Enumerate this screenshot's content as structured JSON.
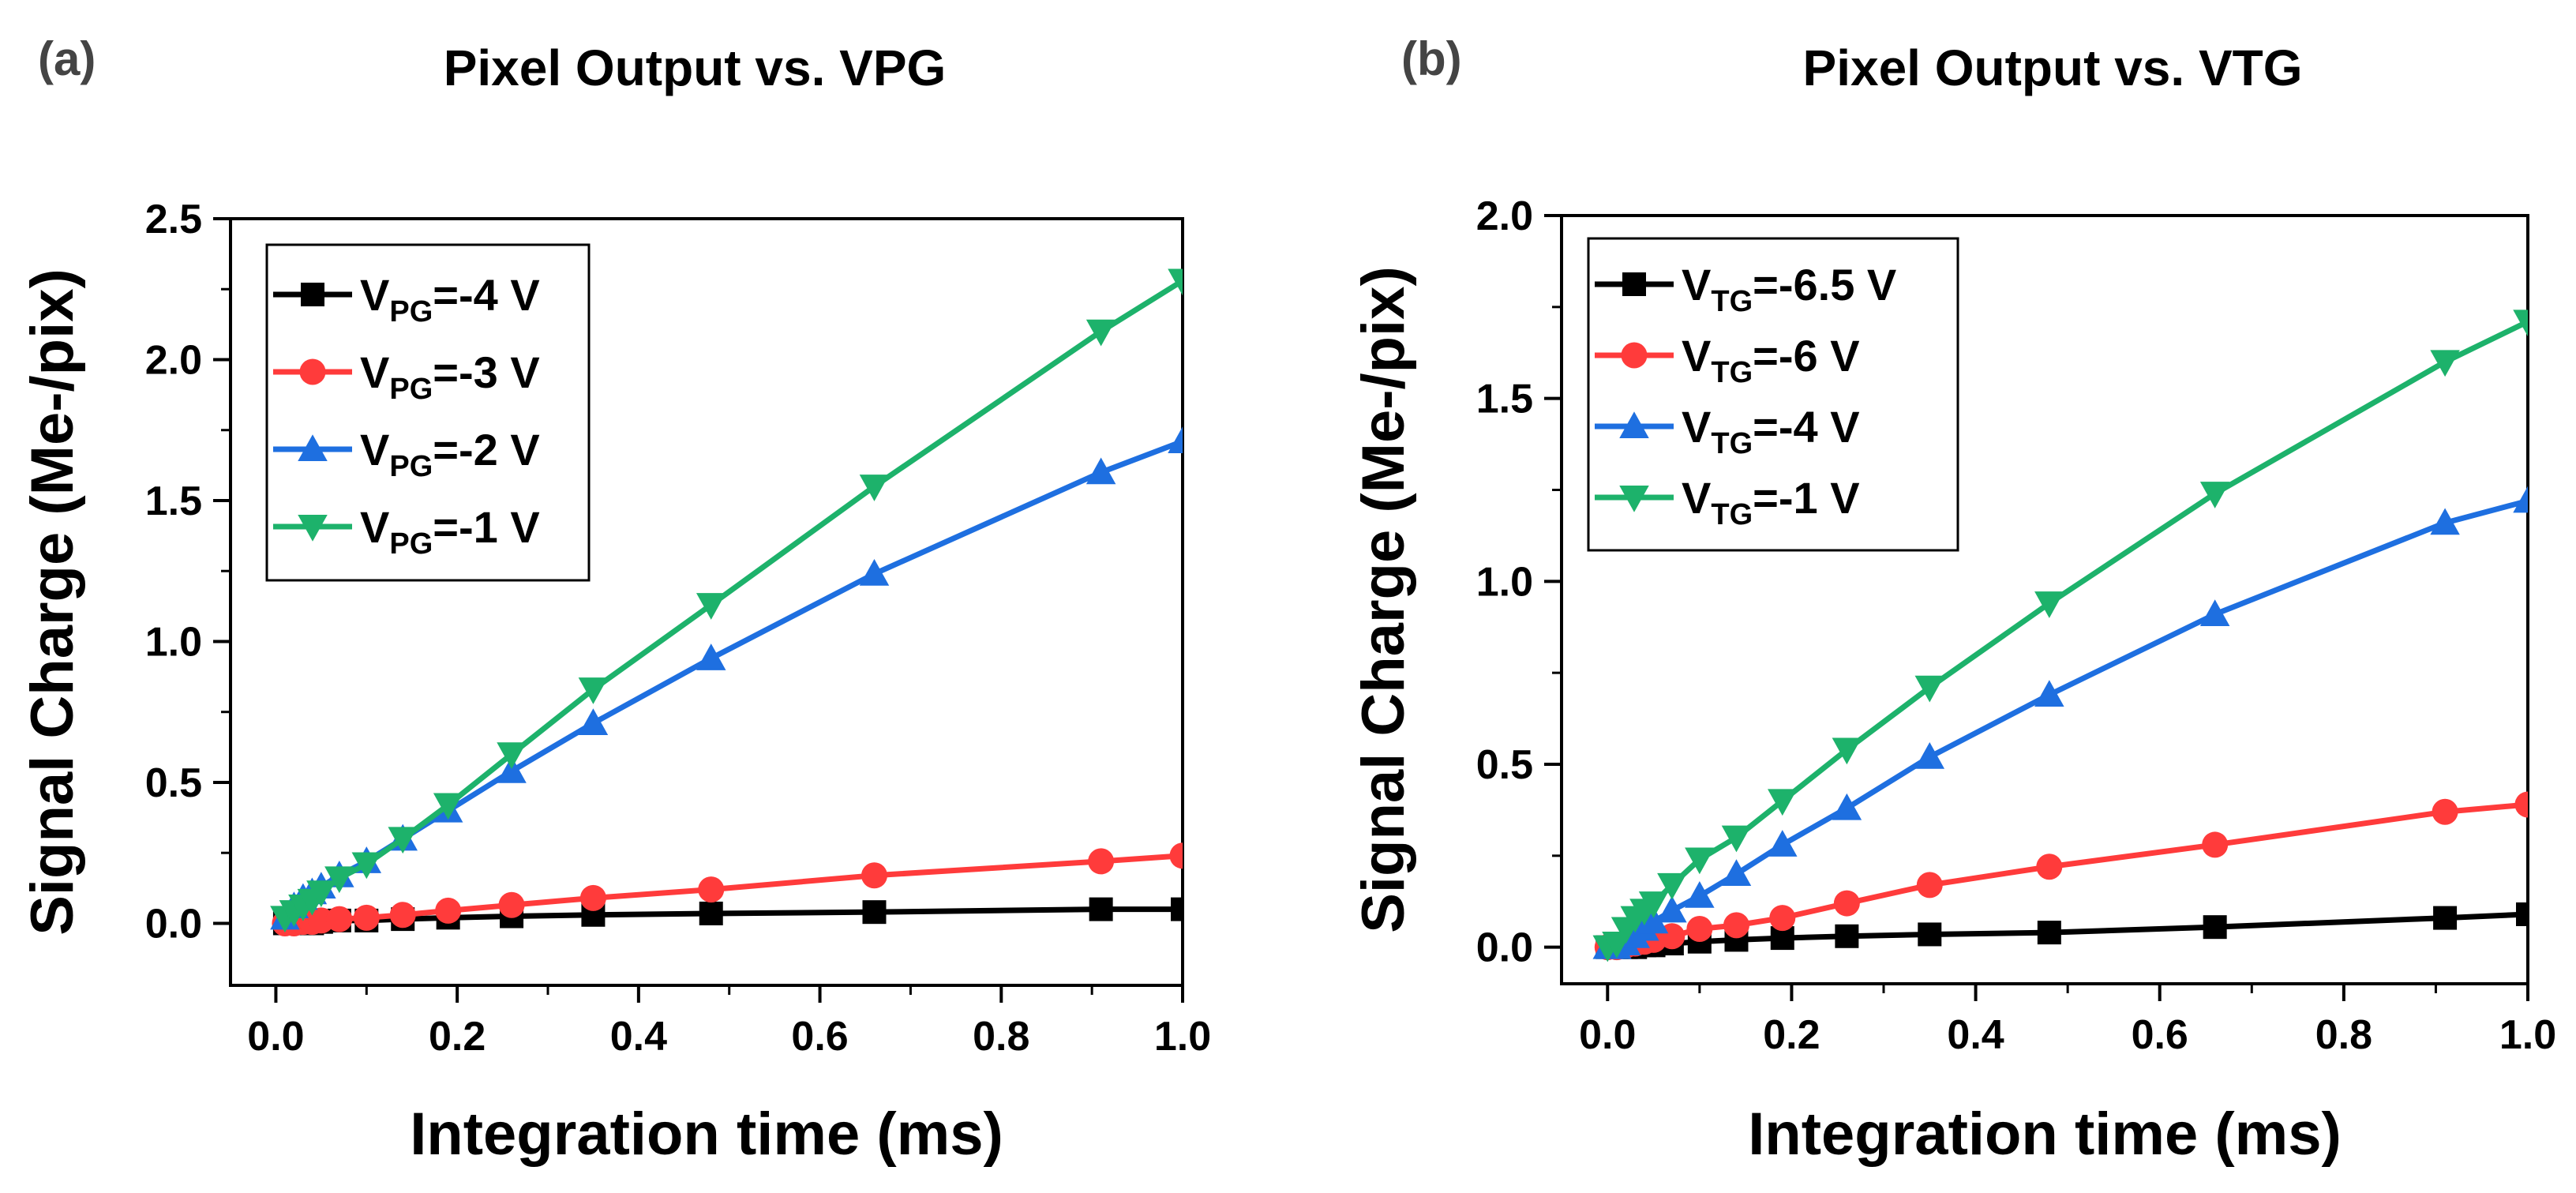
{
  "chart_data": [
    {
      "type": "line",
      "panel_label": "(a)",
      "title": "Pixel Output vs. VPG",
      "xlabel": "Integration time (ms)",
      "ylabel": "Signal Charge (Me-/pix)",
      "xlim": [
        -0.05,
        1.0
      ],
      "ylim": [
        -0.22,
        2.5
      ],
      "xticks": [
        "0.0",
        "0.2",
        "0.4",
        "0.6",
        "0.8",
        "1.0"
      ],
      "yticks": [
        "0.0",
        "0.5",
        "1.0",
        "1.5",
        "2.0",
        "2.5"
      ],
      "legend_position": "top-left",
      "x": [
        0.01,
        0.02,
        0.03,
        0.04,
        0.05,
        0.07,
        0.1,
        0.14,
        0.19,
        0.26,
        0.35,
        0.48,
        0.66,
        0.91,
        1.0
      ],
      "series": [
        {
          "label_main": "V",
          "label_sub": "PG",
          "label_rest": "=-4 V",
          "color": "#000000",
          "marker": "square",
          "values": [
            0.0,
            0.0,
            0.0,
            0.0,
            0.005,
            0.01,
            0.01,
            0.015,
            0.02,
            0.025,
            0.03,
            0.035,
            0.04,
            0.05,
            0.05
          ]
        },
        {
          "label_main": "V",
          "label_sub": "PG",
          "label_rest": "=-3 V",
          "color": "#ff3b3b",
          "marker": "circle",
          "values": [
            0.0,
            0.0,
            0.005,
            0.005,
            0.01,
            0.015,
            0.02,
            0.03,
            0.045,
            0.065,
            0.09,
            0.12,
            0.17,
            0.22,
            0.24
          ]
        },
        {
          "label_main": "V",
          "label_sub": "PG",
          "label_rest": "=-2 V",
          "color": "#1e6fe0",
          "marker": "triangle-up",
          "values": [
            0.02,
            0.06,
            0.09,
            0.11,
            0.13,
            0.17,
            0.22,
            0.3,
            0.4,
            0.54,
            0.71,
            0.94,
            1.24,
            1.6,
            1.71
          ]
        },
        {
          "label_main": "V",
          "label_sub": "PG",
          "label_rest": "=-1 V",
          "color": "#1db26b",
          "marker": "triangle-down",
          "values": [
            0.02,
            0.04,
            0.06,
            0.08,
            0.11,
            0.16,
            0.21,
            0.3,
            0.42,
            0.6,
            0.83,
            1.13,
            1.55,
            2.1,
            2.28
          ]
        }
      ]
    },
    {
      "type": "line",
      "panel_label": "(b)",
      "title": "Pixel Output vs. VTG",
      "xlabel": "Integration time (ms)",
      "ylabel": "Signal Charge (Me-/pix)",
      "xlim": [
        -0.05,
        1.0
      ],
      "ylim": [
        -0.1,
        2.0
      ],
      "xticks": [
        "0.0",
        "0.2",
        "0.4",
        "0.6",
        "0.8",
        "1.0"
      ],
      "yticks": [
        "0.0",
        "0.5",
        "1.0",
        "1.5",
        "2.0"
      ],
      "legend_position": "top-left",
      "x": [
        0.0,
        0.01,
        0.02,
        0.03,
        0.04,
        0.05,
        0.07,
        0.1,
        0.14,
        0.19,
        0.26,
        0.35,
        0.48,
        0.66,
        0.91,
        1.0
      ],
      "series": [
        {
          "label_main": "V",
          "label_sub": "TG",
          "label_rest": "=-6.5 V",
          "color": "#000000",
          "marker": "square",
          "values": [
            0.0,
            0.0,
            0.0,
            0.0,
            0.005,
            0.005,
            0.01,
            0.015,
            0.02,
            0.025,
            0.03,
            0.035,
            0.04,
            0.055,
            0.08,
            0.09
          ]
        },
        {
          "label_main": "V",
          "label_sub": "TG",
          "label_rest": "=-6 V",
          "color": "#ff3b3b",
          "marker": "circle",
          "values": [
            0.0,
            0.0,
            0.005,
            0.01,
            0.015,
            0.02,
            0.03,
            0.05,
            0.06,
            0.08,
            0.12,
            0.17,
            0.22,
            0.28,
            0.37,
            0.39
          ]
        },
        {
          "label_main": "V",
          "label_sub": "TG",
          "label_rest": "=-4 V",
          "color": "#1e6fe0",
          "marker": "triangle-up",
          "values": [
            0.0,
            0.0,
            0.01,
            0.03,
            0.05,
            0.07,
            0.1,
            0.14,
            0.2,
            0.28,
            0.38,
            0.52,
            0.69,
            0.91,
            1.16,
            1.22
          ]
        },
        {
          "label_main": "V",
          "label_sub": "TG",
          "label_rest": "=-1 V",
          "color": "#1db26b",
          "marker": "triangle-down",
          "values": [
            0.0,
            0.01,
            0.05,
            0.08,
            0.1,
            0.12,
            0.17,
            0.24,
            0.3,
            0.4,
            0.54,
            0.71,
            0.94,
            1.24,
            1.6,
            1.71
          ]
        }
      ]
    }
  ]
}
